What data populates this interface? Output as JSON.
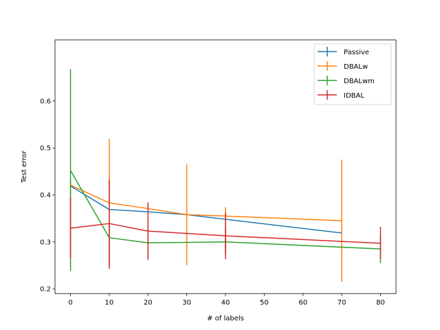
{
  "chart_data": {
    "type": "line",
    "title": "",
    "xlabel": "# of labels",
    "ylabel": "Test error",
    "xlim": [
      -4,
      84
    ],
    "ylim": [
      0.19,
      0.73
    ],
    "xticks": [
      0,
      10,
      20,
      30,
      40,
      50,
      60,
      70,
      80
    ],
    "xtick_labels": [
      "0",
      "10",
      "20",
      "30",
      "40",
      "50",
      "60",
      "70",
      "80"
    ],
    "yticks": [
      0.2,
      0.3,
      0.4,
      0.5,
      0.6
    ],
    "ytick_labels": [
      "0.2",
      "0.3",
      "0.4",
      "0.5",
      "0.6"
    ],
    "grid": false,
    "legend_position": "top-right",
    "series": [
      {
        "name": "Passive",
        "color": "#1f77b4",
        "x": [
          0,
          10,
          20,
          30,
          40,
          70
        ],
        "y": [
          0.419,
          0.369,
          0.364,
          0.358,
          0.348,
          0.319
        ],
        "err_low": [
          null,
          null,
          null,
          null,
          null,
          null
        ],
        "err_high": [
          null,
          null,
          null,
          null,
          null,
          null
        ]
      },
      {
        "name": "DBALw",
        "color": "#ff7f0e",
        "x": [
          0,
          10,
          20,
          30,
          40,
          70
        ],
        "y": [
          0.421,
          0.383,
          0.371,
          0.358,
          0.355,
          0.345
        ],
        "err_low": [
          0.275,
          0.253,
          0.275,
          0.25,
          0.275,
          0.215
        ],
        "err_high": [
          0.432,
          0.519,
          0.38,
          0.465,
          0.374,
          0.475
        ]
      },
      {
        "name": "DBALwm",
        "color": "#2ca02c",
        "x": [
          0,
          10,
          20,
          40,
          80
        ],
        "y": [
          0.452,
          0.309,
          0.298,
          0.3,
          0.285
        ],
        "err_low": [
          0.238,
          0.25,
          0.27,
          0.275,
          0.255
        ],
        "err_high": [
          0.668,
          0.335,
          0.32,
          0.33,
          0.315
        ]
      },
      {
        "name": "IDBAL",
        "color": "#d62728",
        "x": [
          0,
          10,
          20,
          40,
          80
        ],
        "y": [
          0.329,
          0.339,
          0.323,
          0.313,
          0.297
        ],
        "err_low": [
          0.265,
          0.243,
          0.261,
          0.263,
          0.263
        ],
        "err_high": [
          0.393,
          0.433,
          0.384,
          0.362,
          0.332
        ]
      }
    ]
  }
}
